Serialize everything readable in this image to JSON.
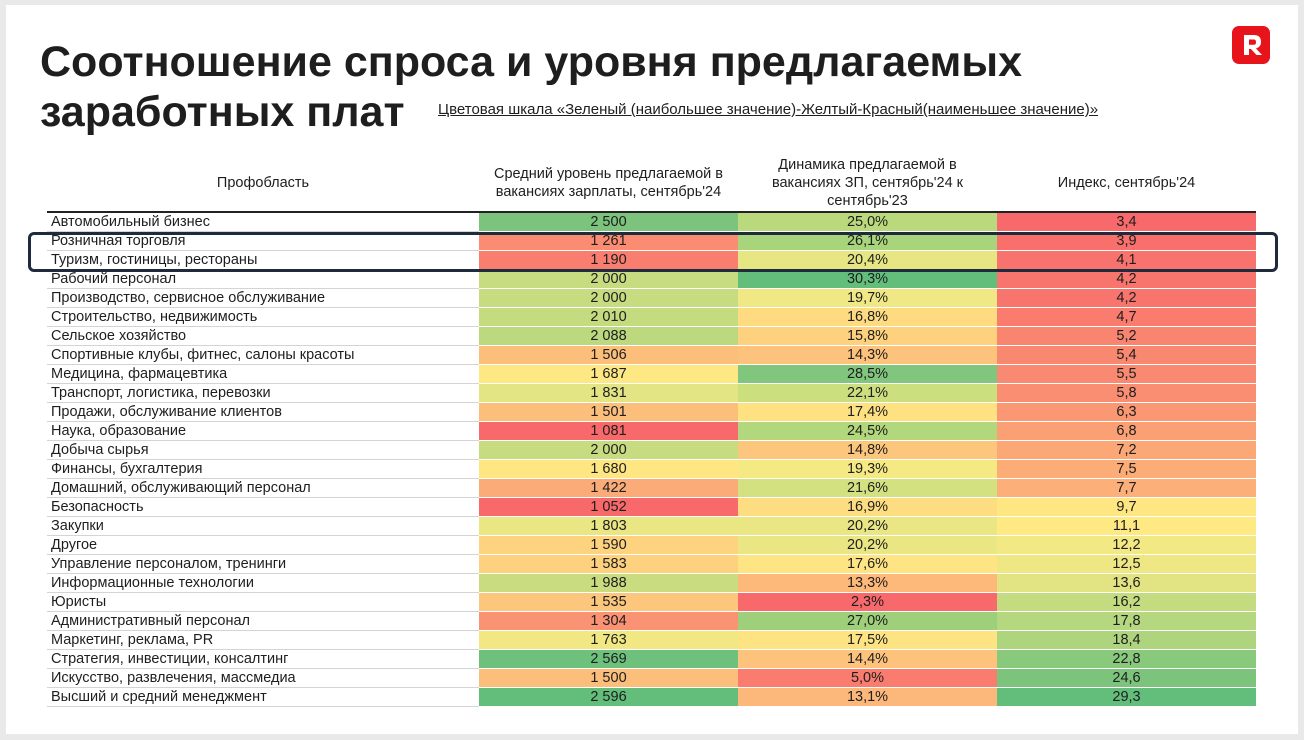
{
  "title": "Соотношение спроса и уровня предлагаемых заработных плат",
  "scale_note": "Цветовая шкала «Зеленый (наибольшее значение)-Желтый-Красный(наименьшее значение)»",
  "logo": {
    "icon": "r-letter-icon",
    "letter": "R",
    "color": "#e8141b"
  },
  "table": {
    "headers": [
      "Профобласть",
      "Средний уровень предлагаемой в вакансиях зарплаты, сентябрь'24",
      "Динамика предлагаемой в вакансиях ЗП, сентябрь'24 к сентябрь'23",
      "Индекс, сентябрь'24"
    ],
    "rows": [
      {
        "name": "Автомобильный бизнес",
        "salary": "2 500",
        "dynamics": "25,0%",
        "index": "3,4",
        "c1": "#7cc47d",
        "c2": "#b9d97c",
        "c3": "#f8696b"
      },
      {
        "name": "Розничная торговля",
        "salary": "1 261",
        "dynamics": "26,1%",
        "index": "3,9",
        "c1": "#fa8c71",
        "c2": "#a8d47b",
        "c3": "#f86f6c"
      },
      {
        "name": "Туризм, гостиницы, рестораны",
        "salary": "1 190",
        "dynamics": "20,4%",
        "index": "4,1",
        "c1": "#f97e6f",
        "c2": "#e6e683",
        "c3": "#f8736d"
      },
      {
        "name": "Рабочий персонал",
        "salary": "2 000",
        "dynamics": "30,3%",
        "index": "4,2",
        "c1": "#c7dc80",
        "c2": "#63be7b",
        "c3": "#f8756d"
      },
      {
        "name": "Производство, сервисное обслуживание",
        "salary": "2 000",
        "dynamics": "19,7%",
        "index": "4,2",
        "c1": "#c7dc80",
        "c2": "#efe884",
        "c3": "#f8756d"
      },
      {
        "name": "Строительство, недвижимость",
        "salary": "2 010",
        "dynamics": "16,8%",
        "index": "4,7",
        "c1": "#c5db80",
        "c2": "#fedb80",
        "c3": "#f97c6f"
      },
      {
        "name": "Сельское хозяйство",
        "salary": "2 088",
        "dynamics": "15,8%",
        "index": "5,2",
        "c1": "#bcd97f",
        "c2": "#fed17e",
        "c3": "#f98570"
      },
      {
        "name": "Спортивные клубы, фитнес, салоны красоты",
        "salary": "1 506",
        "dynamics": "14,3%",
        "index": "5,4",
        "c1": "#fcbf7b",
        "c2": "#fdc27c",
        "c3": "#f98871"
      },
      {
        "name": "Медицина, фармацевтика",
        "salary": "1 687",
        "dynamics": "28,5%",
        "index": "5,5",
        "c1": "#fee883",
        "c2": "#80c67c",
        "c3": "#f98a71"
      },
      {
        "name": "Транспорт, логистика, перевозки",
        "salary": "1 831",
        "dynamics": "22,1%",
        "index": "5,8",
        "c1": "#e3e483",
        "c2": "#cbdf7f",
        "c3": "#fa8e72"
      },
      {
        "name": "Продажи, обслуживание клиентов",
        "salary": "1 501",
        "dynamics": "17,4%",
        "index": "6,3",
        "c1": "#fcbe7b",
        "c2": "#fee282",
        "c3": "#fa9873"
      },
      {
        "name": "Наука, образование",
        "salary": "1 081",
        "dynamics": "24,5%",
        "index": "6,8",
        "c1": "#f8696b",
        "c2": "#b3d77c",
        "c3": "#fba075"
      },
      {
        "name": "Добыча сырья",
        "salary": "2 000",
        "dynamics": "14,8%",
        "index": "7,2",
        "c1": "#c7dc80",
        "c2": "#fdc67d",
        "c3": "#fba776"
      },
      {
        "name": "Финансы, бухгалтерия",
        "salary": "1 680",
        "dynamics": "19,3%",
        "index": "7,5",
        "c1": "#fee783",
        "c2": "#f5e984",
        "c3": "#fcac77"
      },
      {
        "name": "Домашний, обслуживающий персонал",
        "salary": "1 422",
        "dynamics": "21,6%",
        "index": "7,7",
        "c1": "#fbab77",
        "c2": "#d3e180",
        "c3": "#fcaf78"
      },
      {
        "name": "Безопасность",
        "salary": "1 052",
        "dynamics": "16,9%",
        "index": "9,7",
        "c1": "#f8696b",
        "c2": "#fedc81",
        "c3": "#fee783"
      },
      {
        "name": "Закупки",
        "salary": "1 803",
        "dynamics": "20,2%",
        "index": "11,1",
        "c1": "#e9e683",
        "c2": "#e9e683",
        "c3": "#fee983"
      },
      {
        "name": "Другое",
        "salary": "1 590",
        "dynamics": "20,2%",
        "index": "12,2",
        "c1": "#fed380",
        "c2": "#e9e683",
        "c3": "#f2e884"
      },
      {
        "name": "Управление персоналом, тренинги",
        "salary": "1 583",
        "dynamics": "17,6%",
        "index": "12,5",
        "c1": "#fed17f",
        "c2": "#fee483",
        "c3": "#eee784"
      },
      {
        "name": "Информационные технологии",
        "salary": "1 988",
        "dynamics": "13,3%",
        "index": "13,6",
        "c1": "#c9dd80",
        "c2": "#fcb97a",
        "c3": "#e2e383"
      },
      {
        "name": "Юристы",
        "salary": "1 535",
        "dynamics": "2,3%",
        "index": "16,2",
        "c1": "#fdc67d",
        "c2": "#f8696b",
        "c3": "#c5db80"
      },
      {
        "name": "Административный персонал",
        "salary": "1 304",
        "dynamics": "27,0%",
        "index": "17,8",
        "c1": "#fa9373",
        "c2": "#9ecf7b",
        "c3": "#b5d77f"
      },
      {
        "name": "Маркетинг, реклама, PR",
        "salary": "1 763",
        "dynamics": "17,5%",
        "index": "18,4",
        "c1": "#f1e884",
        "c2": "#fee383",
        "c3": "#aed57e"
      },
      {
        "name": "Стратегия, инвестиции, консалтинг",
        "salary": "2 569",
        "dynamics": "14,4%",
        "index": "22,8",
        "c1": "#6ec17c",
        "c2": "#fdc37c",
        "c3": "#88c97c"
      },
      {
        "name": "Искусство, развлечения, массмедиа",
        "salary": "1 500",
        "dynamics": "5,0%",
        "index": "24,6",
        "c1": "#fcbe7b",
        "c2": "#f97c6f",
        "c3": "#7cc47c"
      },
      {
        "name": "Высший и средний менеджмент",
        "salary": "2 596",
        "dynamics": "13,1%",
        "index": "29,3",
        "c1": "#63be7b",
        "c2": "#fcb77a",
        "c3": "#63be7b"
      }
    ]
  }
}
